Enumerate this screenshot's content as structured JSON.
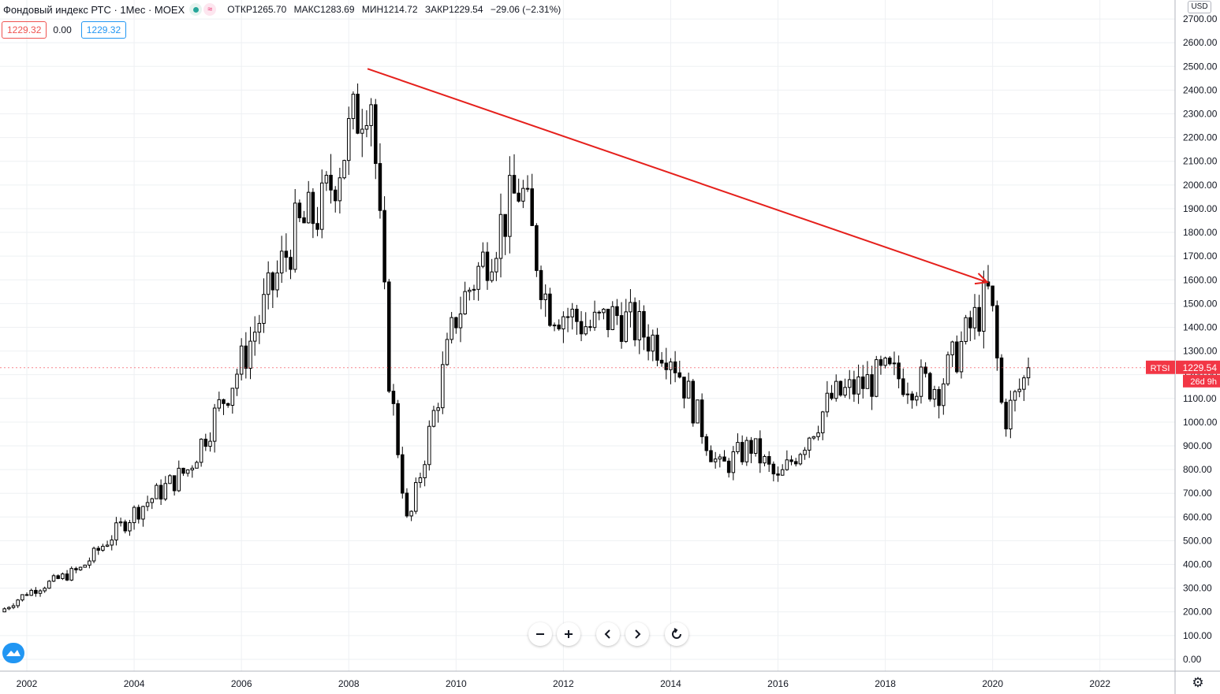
{
  "header": {
    "title": "Фондовый индекс РТС · 1Мес · MOEX",
    "ohlc": {
      "open_label": "ОТКР",
      "open": "1265.70",
      "high_label": "МАКС",
      "high": "1283.69",
      "low_label": "МИН",
      "low": "1214.72",
      "close_label": "ЗАКР",
      "close": "1229.54",
      "change": "−29.06 (−2.31%)"
    },
    "inputs": {
      "left": "1229.32",
      "middle": "0.00",
      "right": "1229.32"
    }
  },
  "currency": "USD",
  "price_badge": {
    "label": "RTSI",
    "value": "1229.54",
    "countdown": "26d 9h",
    "color": "#f23645"
  },
  "controls": {
    "zoom_out_icon": "minus-icon",
    "zoom_in_icon": "plus-icon",
    "scroll_left_icon": "chevron-left-icon",
    "scroll_right_icon": "chevron-right-icon",
    "reset_icon": "reset-icon",
    "settings_icon": "gear-icon",
    "logo_icon": "tradingview-logo-icon"
  },
  "chart_data": {
    "type": "candlestick",
    "interval": "1 month",
    "x_range": [
      2001.5,
      2023.4
    ],
    "ylim": [
      -50,
      2780
    ],
    "x_ticks": [
      2002,
      2004,
      2006,
      2008,
      2010,
      2012,
      2014,
      2016,
      2018,
      2020,
      2022
    ],
    "y_ticks": [
      0,
      100,
      200,
      300,
      400,
      500,
      600,
      700,
      800,
      900,
      1000,
      1100,
      1200,
      1300,
      1400,
      1500,
      1600,
      1700,
      1800,
      1900,
      2000,
      2100,
      2200,
      2300,
      2400,
      2500,
      2600,
      2700
    ],
    "grid": true,
    "colors": {
      "up": "#ffffff",
      "down": "#000000",
      "outline": "#000000",
      "trendline": "#e5201c",
      "grid": "#eef0f3"
    },
    "key_points": {
      "x": [
        2001.5,
        2002.0,
        2003.0,
        2004.0,
        2005.0,
        2006.0,
        2007.0,
        2007.5,
        2008.4,
        2008.75,
        2009.1,
        2010.0,
        2011.2,
        2011.7,
        2012.5,
        2013.0,
        2014.0,
        2014.9,
        2015.5,
        2016.0,
        2017.0,
        2018.0,
        2019.0,
        2019.95,
        2020.2,
        2020.7
      ],
      "y": [
        200,
        280,
        380,
        620,
        800,
        1250,
        1800,
        1900,
        2450,
        1200,
        550,
        1450,
        2000,
        1500,
        1400,
        1450,
        1300,
        800,
        900,
        750,
        1100,
        1200,
        1150,
        1550,
        1000,
        1229.54
      ]
    },
    "trendline": {
      "from": {
        "x": 2008.35,
        "y": 2490
      },
      "to": {
        "x": 2019.9,
        "y": 1590
      }
    }
  }
}
